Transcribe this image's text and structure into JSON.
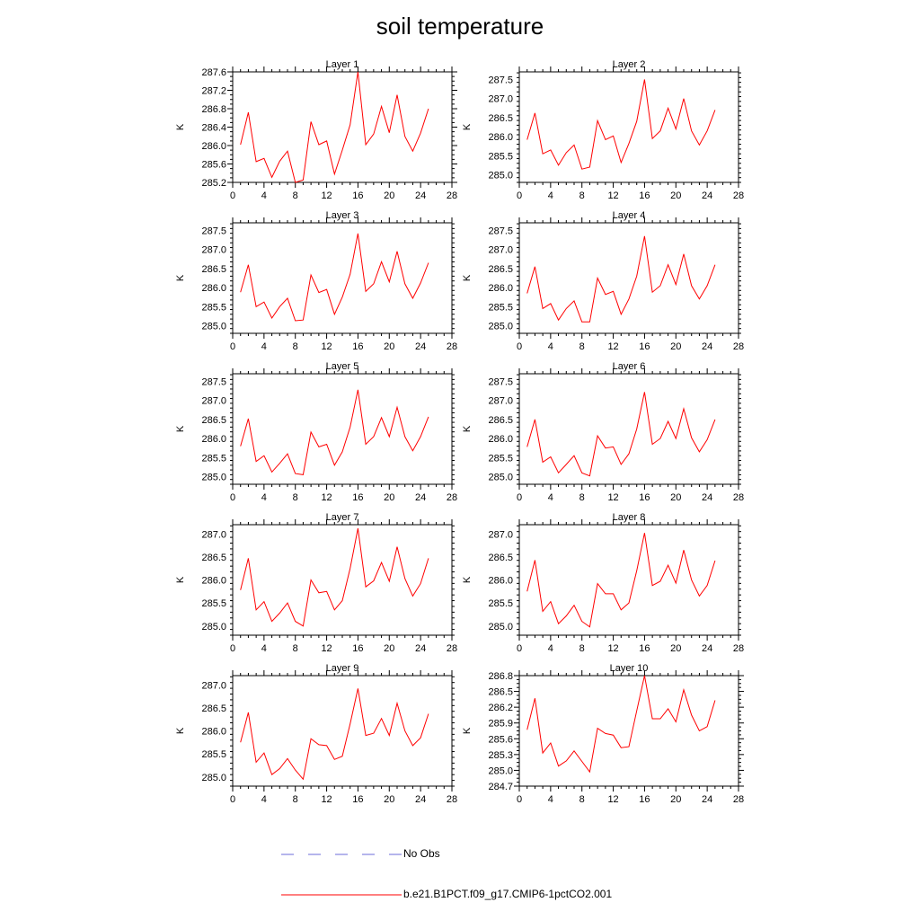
{
  "title": "soil temperature",
  "y_axis_label": "K",
  "legend": {
    "no_obs": "No Obs",
    "model": "b.e21.B1PCT.f09_g17.CMIP6-1pctCO2.001"
  },
  "colors": {
    "model_line": "#ff0000",
    "no_obs_line": "#6b6bd8"
  },
  "chart_data": [
    {
      "type": "line",
      "title": "Layer 1",
      "ylabel": "K",
      "xlim": [
        0,
        28
      ],
      "ylim": [
        285.2,
        287.6
      ],
      "xticks": [
        0,
        4,
        8,
        12,
        16,
        20,
        24,
        28
      ],
      "yticks": [
        "285.2",
        "285.6",
        "286.0",
        "286.4",
        "286.8",
        "287.2",
        "287.6"
      ],
      "series": [
        {
          "x": [
            1,
            2,
            3,
            4,
            5,
            6,
            7,
            8,
            9,
            10,
            11,
            12,
            13,
            14,
            15,
            16,
            17,
            18,
            19,
            20,
            21,
            22,
            23,
            24,
            25
          ],
          "values": [
            286.02,
            286.72,
            285.65,
            285.72,
            285.31,
            285.66,
            285.88,
            285.2,
            285.25,
            286.52,
            286.02,
            286.1,
            285.38,
            285.9,
            286.45,
            287.6,
            286.02,
            286.25,
            286.85,
            286.28,
            287.1,
            286.2,
            285.88,
            286.27,
            286.8
          ]
        }
      ]
    },
    {
      "type": "line",
      "title": "Layer 2",
      "ylabel": "K",
      "xlim": [
        0,
        28
      ],
      "ylim": [
        284.8,
        287.7
      ],
      "xticks": [
        0,
        4,
        8,
        12,
        16,
        20,
        24,
        28
      ],
      "yticks": [
        "285.0",
        "285.5",
        "286.0",
        "286.5",
        "287.0",
        "287.5"
      ],
      "series": [
        {
          "x": [
            1,
            2,
            3,
            4,
            5,
            6,
            7,
            8,
            9,
            10,
            11,
            12,
            13,
            14,
            15,
            16,
            17,
            18,
            19,
            20,
            21,
            22,
            23,
            24,
            25
          ],
          "values": [
            285.92,
            286.62,
            285.55,
            285.65,
            285.25,
            285.58,
            285.78,
            285.15,
            285.2,
            286.42,
            285.92,
            286.02,
            285.32,
            285.82,
            286.4,
            287.5,
            285.95,
            286.15,
            286.75,
            286.2,
            287.0,
            286.15,
            285.78,
            286.15,
            286.7
          ]
        }
      ]
    },
    {
      "type": "line",
      "title": "Layer 3",
      "ylabel": "K",
      "xlim": [
        0,
        28
      ],
      "ylim": [
        284.8,
        287.7
      ],
      "xticks": [
        0,
        4,
        8,
        12,
        16,
        20,
        24,
        28
      ],
      "yticks": [
        "285.0",
        "285.5",
        "286.0",
        "286.5",
        "287.0",
        "287.5"
      ],
      "series": [
        {
          "x": [
            1,
            2,
            3,
            4,
            5,
            6,
            7,
            8,
            9,
            10,
            11,
            12,
            13,
            14,
            15,
            16,
            17,
            18,
            19,
            20,
            21,
            22,
            23,
            24,
            25
          ],
          "values": [
            285.88,
            286.6,
            285.5,
            285.62,
            285.2,
            285.5,
            285.72,
            285.13,
            285.15,
            286.33,
            285.87,
            285.95,
            285.3,
            285.75,
            286.35,
            287.42,
            285.9,
            286.1,
            286.68,
            286.15,
            286.95,
            286.1,
            285.72,
            286.12,
            286.65
          ]
        }
      ]
    },
    {
      "type": "line",
      "title": "Layer 4",
      "ylabel": "K",
      "xlim": [
        0,
        28
      ],
      "ylim": [
        284.8,
        287.7
      ],
      "xticks": [
        0,
        4,
        8,
        12,
        16,
        20,
        24,
        28
      ],
      "yticks": [
        "285.0",
        "285.5",
        "286.0",
        "286.5",
        "287.0",
        "287.5"
      ],
      "series": [
        {
          "x": [
            1,
            2,
            3,
            4,
            5,
            6,
            7,
            8,
            9,
            10,
            11,
            12,
            13,
            14,
            15,
            16,
            17,
            18,
            19,
            20,
            21,
            22,
            23,
            24,
            25
          ],
          "values": [
            285.85,
            286.55,
            285.45,
            285.58,
            285.15,
            285.45,
            285.65,
            285.1,
            285.1,
            286.25,
            285.82,
            285.9,
            285.3,
            285.7,
            286.3,
            287.35,
            285.88,
            286.05,
            286.6,
            286.08,
            286.88,
            286.05,
            285.7,
            286.05,
            286.6
          ]
        }
      ]
    },
    {
      "type": "line",
      "title": "Layer 5",
      "ylabel": "K",
      "xlim": [
        0,
        28
      ],
      "ylim": [
        284.8,
        287.7
      ],
      "xticks": [
        0,
        4,
        8,
        12,
        16,
        20,
        24,
        28
      ],
      "yticks": [
        "285.0",
        "285.5",
        "286.0",
        "286.5",
        "287.0",
        "287.5"
      ],
      "series": [
        {
          "x": [
            1,
            2,
            3,
            4,
            5,
            6,
            7,
            8,
            9,
            10,
            11,
            12,
            13,
            14,
            15,
            16,
            17,
            18,
            19,
            20,
            21,
            22,
            23,
            24,
            25
          ],
          "values": [
            285.8,
            286.52,
            285.4,
            285.55,
            285.12,
            285.35,
            285.6,
            285.08,
            285.05,
            286.17,
            285.78,
            285.85,
            285.3,
            285.65,
            286.3,
            287.28,
            285.85,
            286.05,
            286.55,
            286.05,
            286.82,
            286.05,
            285.68,
            286.05,
            286.57
          ]
        }
      ]
    },
    {
      "type": "line",
      "title": "Layer 6",
      "ylabel": "K",
      "xlim": [
        0,
        28
      ],
      "ylim": [
        284.8,
        287.7
      ],
      "xticks": [
        0,
        4,
        8,
        12,
        16,
        20,
        24,
        28
      ],
      "yticks": [
        "285.0",
        "285.5",
        "286.0",
        "286.5",
        "287.0",
        "287.5"
      ],
      "series": [
        {
          "x": [
            1,
            2,
            3,
            4,
            5,
            6,
            7,
            8,
            9,
            10,
            11,
            12,
            13,
            14,
            15,
            16,
            17,
            18,
            19,
            20,
            21,
            22,
            23,
            24,
            25
          ],
          "values": [
            285.78,
            286.5,
            285.38,
            285.52,
            285.1,
            285.32,
            285.55,
            285.1,
            285.02,
            286.07,
            285.75,
            285.78,
            285.32,
            285.6,
            286.25,
            287.22,
            285.85,
            286.0,
            286.45,
            286.0,
            286.78,
            286.02,
            285.65,
            285.97,
            286.5
          ]
        }
      ]
    },
    {
      "type": "line",
      "title": "Layer 7",
      "ylabel": "K",
      "xlim": [
        0,
        28
      ],
      "ylim": [
        284.8,
        287.2
      ],
      "xticks": [
        0,
        4,
        8,
        12,
        16,
        20,
        24,
        28
      ],
      "yticks": [
        "285.0",
        "285.5",
        "286.0",
        "286.5",
        "287.0"
      ],
      "series": [
        {
          "x": [
            1,
            2,
            3,
            4,
            5,
            6,
            7,
            8,
            9,
            10,
            11,
            12,
            13,
            14,
            15,
            16,
            17,
            18,
            19,
            20,
            21,
            22,
            23,
            24,
            25
          ],
          "values": [
            285.78,
            286.47,
            285.35,
            285.53,
            285.1,
            285.28,
            285.5,
            285.1,
            285.0,
            286.0,
            285.72,
            285.75,
            285.35,
            285.55,
            286.25,
            287.12,
            285.85,
            285.98,
            286.38,
            285.97,
            286.72,
            286.03,
            285.65,
            285.92,
            286.47
          ]
        }
      ]
    },
    {
      "type": "line",
      "title": "Layer 8",
      "ylabel": "K",
      "xlim": [
        0,
        28
      ],
      "ylim": [
        284.8,
        287.2
      ],
      "xticks": [
        0,
        4,
        8,
        12,
        16,
        20,
        24,
        28
      ],
      "yticks": [
        "285.0",
        "285.5",
        "286.0",
        "286.5",
        "287.0"
      ],
      "series": [
        {
          "x": [
            1,
            2,
            3,
            4,
            5,
            6,
            7,
            8,
            9,
            10,
            11,
            12,
            13,
            14,
            15,
            16,
            17,
            18,
            19,
            20,
            21,
            22,
            23,
            24,
            25
          ],
          "values": [
            285.75,
            286.43,
            285.32,
            285.53,
            285.05,
            285.22,
            285.45,
            285.1,
            284.98,
            285.92,
            285.7,
            285.7,
            285.35,
            285.5,
            286.2,
            287.02,
            285.88,
            285.97,
            286.32,
            285.93,
            286.65,
            286.0,
            285.65,
            285.88,
            286.42
          ]
        }
      ]
    },
    {
      "type": "line",
      "title": "Layer 9",
      "ylabel": "K",
      "xlim": [
        0,
        28
      ],
      "ylim": [
        284.8,
        287.2
      ],
      "xticks": [
        0,
        4,
        8,
        12,
        16,
        20,
        24,
        28
      ],
      "yticks": [
        "285.0",
        "285.5",
        "286.0",
        "286.5",
        "287.0"
      ],
      "series": [
        {
          "x": [
            1,
            2,
            3,
            4,
            5,
            6,
            7,
            8,
            9,
            10,
            11,
            12,
            13,
            14,
            15,
            16,
            17,
            18,
            19,
            20,
            21,
            22,
            23,
            24,
            25
          ],
          "values": [
            285.75,
            286.4,
            285.32,
            285.52,
            285.05,
            285.18,
            285.4,
            285.15,
            284.95,
            285.83,
            285.7,
            285.68,
            285.38,
            285.45,
            286.15,
            286.92,
            285.9,
            285.95,
            286.27,
            285.9,
            286.6,
            286.0,
            285.68,
            285.85,
            286.37
          ]
        }
      ]
    },
    {
      "type": "line",
      "title": "Layer 10",
      "ylabel": "K",
      "xlim": [
        0,
        28
      ],
      "ylim": [
        284.7,
        286.8
      ],
      "xticks": [
        0,
        4,
        8,
        12,
        16,
        20,
        24,
        28
      ],
      "yticks": [
        "284.7",
        "285.0",
        "285.3",
        "285.6",
        "285.9",
        "286.2",
        "286.5",
        "286.8"
      ],
      "series": [
        {
          "x": [
            1,
            2,
            3,
            4,
            5,
            6,
            7,
            8,
            9,
            10,
            11,
            12,
            13,
            14,
            15,
            16,
            17,
            18,
            19,
            20,
            21,
            22,
            23,
            24,
            25
          ],
          "values": [
            285.77,
            286.37,
            285.33,
            285.52,
            285.08,
            285.18,
            285.37,
            285.17,
            284.97,
            285.8,
            285.7,
            285.67,
            285.43,
            285.45,
            286.13,
            286.8,
            285.98,
            285.98,
            286.17,
            285.92,
            286.53,
            286.05,
            285.75,
            285.83,
            286.33
          ]
        }
      ]
    }
  ]
}
